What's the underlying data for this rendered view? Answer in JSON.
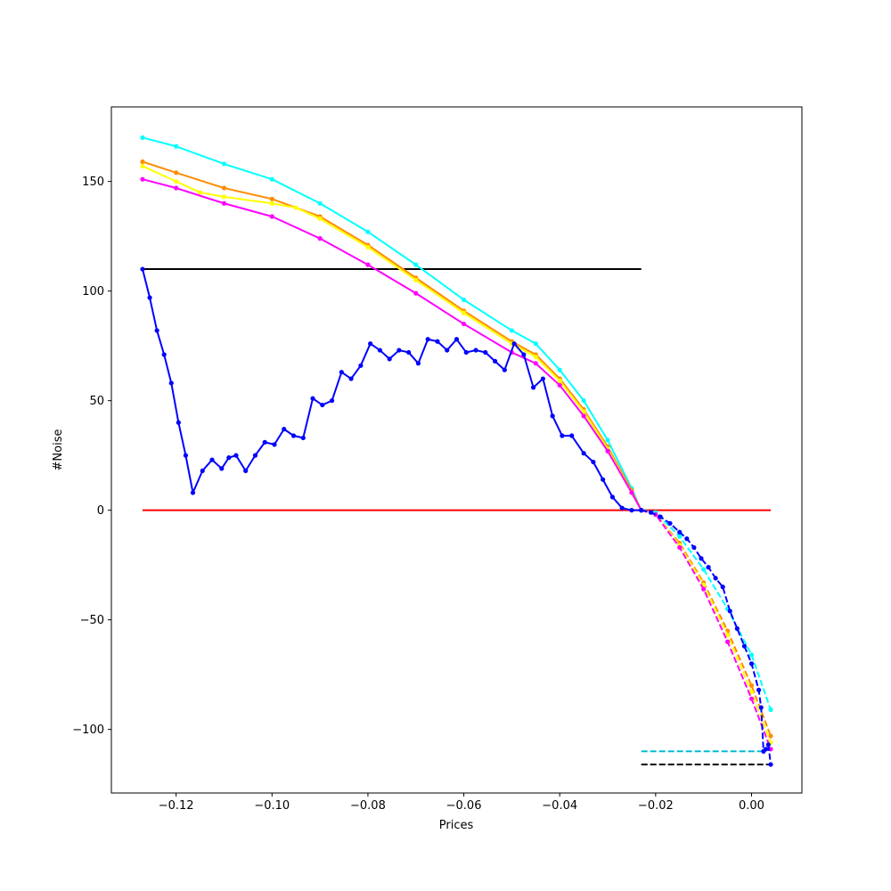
{
  "chart_data": {
    "type": "line",
    "xlabel": "Prices",
    "ylabel": "#Noise",
    "xlim": [
      -0.1335,
      0.0105
    ],
    "ylim": [
      -129,
      184
    ],
    "grid": false,
    "legend": "none",
    "xticks": [
      {
        "value": -0.12,
        "label": "−0.12"
      },
      {
        "value": -0.1,
        "label": "−0.10"
      },
      {
        "value": -0.08,
        "label": "−0.08"
      },
      {
        "value": -0.06,
        "label": "−0.06"
      },
      {
        "value": -0.04,
        "label": "−0.04"
      },
      {
        "value": -0.02,
        "label": "−0.02"
      },
      {
        "value": 0.0,
        "label": "0.00"
      }
    ],
    "yticks": [
      {
        "value": -100,
        "label": "−100"
      },
      {
        "value": -50,
        "label": "−50"
      },
      {
        "value": 0,
        "label": "0"
      },
      {
        "value": 50,
        "label": "50"
      },
      {
        "value": 100,
        "label": "100"
      },
      {
        "value": 150,
        "label": "150"
      }
    ],
    "series": [
      {
        "color": "#ff0000",
        "style": "solid",
        "markers": false,
        "points": [
          [
            -0.127,
            0
          ],
          [
            0.004,
            0
          ]
        ]
      },
      {
        "color": "#000000",
        "style": "solid",
        "markers": false,
        "points": [
          [
            -0.127,
            110
          ],
          [
            -0.023,
            110
          ]
        ]
      },
      {
        "color": "#000000",
        "style": "dashed",
        "markers": false,
        "points": [
          [
            -0.023,
            -116
          ],
          [
            0.004,
            -116
          ]
        ]
      },
      {
        "color": "#00bcd4",
        "style": "dashed",
        "markers": false,
        "points": [
          [
            -0.023,
            -110
          ],
          [
            0.003,
            -110
          ]
        ]
      },
      {
        "color": "#00ffff",
        "style": "solid",
        "markers": true,
        "points": [
          [
            -0.127,
            170
          ],
          [
            -0.12,
            166
          ],
          [
            -0.11,
            158
          ],
          [
            -0.1,
            151
          ],
          [
            -0.09,
            140
          ],
          [
            -0.08,
            127
          ],
          [
            -0.07,
            112
          ],
          [
            -0.06,
            96
          ],
          [
            -0.05,
            82
          ],
          [
            -0.045,
            76
          ],
          [
            -0.04,
            64
          ],
          [
            -0.035,
            50
          ],
          [
            -0.03,
            32
          ],
          [
            -0.025,
            10
          ],
          [
            -0.023,
            0
          ]
        ]
      },
      {
        "color": "#ff8c00",
        "style": "solid",
        "markers": true,
        "points": [
          [
            -0.127,
            159
          ],
          [
            -0.12,
            154
          ],
          [
            -0.11,
            147
          ],
          [
            -0.1,
            142
          ],
          [
            -0.09,
            134
          ],
          [
            -0.08,
            121
          ],
          [
            -0.07,
            106
          ],
          [
            -0.06,
            91
          ],
          [
            -0.05,
            77
          ],
          [
            -0.045,
            71
          ],
          [
            -0.04,
            60
          ],
          [
            -0.035,
            46
          ],
          [
            -0.03,
            29
          ],
          [
            -0.025,
            9
          ],
          [
            -0.023,
            0
          ]
        ]
      },
      {
        "color": "#ffff00",
        "style": "solid",
        "markers": true,
        "points": [
          [
            -0.127,
            157
          ],
          [
            -0.12,
            150
          ],
          [
            -0.115,
            145
          ],
          [
            -0.11,
            143
          ],
          [
            -0.1,
            140
          ],
          [
            -0.095,
            138
          ],
          [
            -0.09,
            133
          ],
          [
            -0.08,
            120
          ],
          [
            -0.07,
            105
          ],
          [
            -0.06,
            90
          ],
          [
            -0.05,
            76
          ],
          [
            -0.045,
            70
          ],
          [
            -0.04,
            59
          ],
          [
            -0.035,
            45
          ],
          [
            -0.03,
            28
          ],
          [
            -0.025,
            8
          ],
          [
            -0.023,
            0
          ]
        ]
      },
      {
        "color": "#ff00ff",
        "style": "solid",
        "markers": true,
        "points": [
          [
            -0.127,
            151
          ],
          [
            -0.12,
            147
          ],
          [
            -0.11,
            140
          ],
          [
            -0.1,
            134
          ],
          [
            -0.09,
            124
          ],
          [
            -0.08,
            112
          ],
          [
            -0.07,
            99
          ],
          [
            -0.06,
            85
          ],
          [
            -0.05,
            72
          ],
          [
            -0.045,
            67
          ],
          [
            -0.04,
            57
          ],
          [
            -0.035,
            43
          ],
          [
            -0.03,
            27
          ],
          [
            -0.025,
            8
          ],
          [
            -0.023,
            0
          ]
        ]
      },
      {
        "color": "#00ffff",
        "style": "dashed",
        "markers": true,
        "points": [
          [
            -0.023,
            0
          ],
          [
            -0.02,
            -1
          ],
          [
            -0.015,
            -12
          ],
          [
            -0.01,
            -27
          ],
          [
            -0.005,
            -45
          ],
          [
            0.0,
            -66
          ],
          [
            0.004,
            -91
          ]
        ]
      },
      {
        "color": "#ff8c00",
        "style": "dashed",
        "markers": true,
        "points": [
          [
            -0.023,
            0
          ],
          [
            -0.02,
            -2
          ],
          [
            -0.015,
            -15
          ],
          [
            -0.01,
            -33
          ],
          [
            -0.005,
            -55
          ],
          [
            0.0,
            -80
          ],
          [
            0.004,
            -103
          ]
        ]
      },
      {
        "color": "#ffff00",
        "style": "dashed",
        "markers": true,
        "points": [
          [
            -0.023,
            0
          ],
          [
            -0.02,
            -2
          ],
          [
            -0.015,
            -16
          ],
          [
            -0.01,
            -34
          ],
          [
            -0.005,
            -57
          ],
          [
            0.0,
            -83
          ],
          [
            0.004,
            -106
          ]
        ]
      },
      {
        "color": "#ff00ff",
        "style": "dashed",
        "markers": true,
        "points": [
          [
            -0.023,
            0
          ],
          [
            -0.02,
            -2
          ],
          [
            -0.015,
            -17
          ],
          [
            -0.01,
            -36
          ],
          [
            -0.005,
            -60
          ],
          [
            0.0,
            -86
          ],
          [
            0.004,
            -109
          ]
        ]
      },
      {
        "color": "#0000ff",
        "style": "solid",
        "markers": true,
        "points": [
          [
            -0.127,
            110
          ],
          [
            -0.1255,
            97
          ],
          [
            -0.124,
            82
          ],
          [
            -0.1225,
            71
          ],
          [
            -0.121,
            58
          ],
          [
            -0.1195,
            40
          ],
          [
            -0.118,
            25
          ],
          [
            -0.1165,
            8
          ],
          [
            -0.1145,
            18
          ],
          [
            -0.1125,
            23
          ],
          [
            -0.1105,
            19
          ],
          [
            -0.109,
            24
          ],
          [
            -0.1075,
            25
          ],
          [
            -0.1055,
            18
          ],
          [
            -0.1035,
            25
          ],
          [
            -0.1015,
            31
          ],
          [
            -0.0995,
            30
          ],
          [
            -0.0975,
            37
          ],
          [
            -0.0955,
            34
          ],
          [
            -0.0935,
            33
          ],
          [
            -0.0915,
            51
          ],
          [
            -0.0895,
            48
          ],
          [
            -0.0875,
            50
          ],
          [
            -0.0855,
            63
          ],
          [
            -0.0835,
            60
          ],
          [
            -0.0815,
            66
          ],
          [
            -0.0795,
            76
          ],
          [
            -0.0775,
            73
          ],
          [
            -0.0755,
            69
          ],
          [
            -0.0735,
            73
          ],
          [
            -0.0715,
            72
          ],
          [
            -0.0695,
            67
          ],
          [
            -0.0675,
            78
          ],
          [
            -0.0655,
            77
          ],
          [
            -0.0635,
            73
          ],
          [
            -0.0615,
            78
          ],
          [
            -0.0595,
            72
          ],
          [
            -0.0575,
            73
          ],
          [
            -0.0555,
            72
          ],
          [
            -0.0535,
            68
          ],
          [
            -0.0515,
            64
          ],
          [
            -0.0495,
            76
          ],
          [
            -0.0475,
            71
          ],
          [
            -0.0455,
            56
          ],
          [
            -0.0435,
            60
          ],
          [
            -0.0415,
            43
          ],
          [
            -0.0395,
            34
          ],
          [
            -0.0375,
            34
          ],
          [
            -0.035,
            26
          ],
          [
            -0.033,
            22
          ],
          [
            -0.031,
            14
          ],
          [
            -0.029,
            6
          ],
          [
            -0.027,
            1
          ],
          [
            -0.025,
            0
          ],
          [
            -0.023,
            0
          ]
        ]
      },
      {
        "color": "#0000ff",
        "style": "dashed",
        "markers": true,
        "points": [
          [
            -0.023,
            0
          ],
          [
            -0.021,
            -1
          ],
          [
            -0.019,
            -3
          ],
          [
            -0.017,
            -6
          ],
          [
            -0.015,
            -10
          ],
          [
            -0.0135,
            -13
          ],
          [
            -0.012,
            -17
          ],
          [
            -0.0105,
            -22
          ],
          [
            -0.009,
            -26
          ],
          [
            -0.0075,
            -31
          ],
          [
            -0.006,
            -35
          ],
          [
            -0.0045,
            -46
          ],
          [
            -0.003,
            -54
          ],
          [
            -0.0015,
            -62
          ],
          [
            0.0,
            -70
          ],
          [
            0.0015,
            -82
          ],
          [
            0.002,
            -90
          ],
          [
            0.0025,
            -110
          ],
          [
            0.003,
            -109
          ],
          [
            0.0035,
            -107
          ],
          [
            0.004,
            -116
          ]
        ]
      }
    ]
  }
}
